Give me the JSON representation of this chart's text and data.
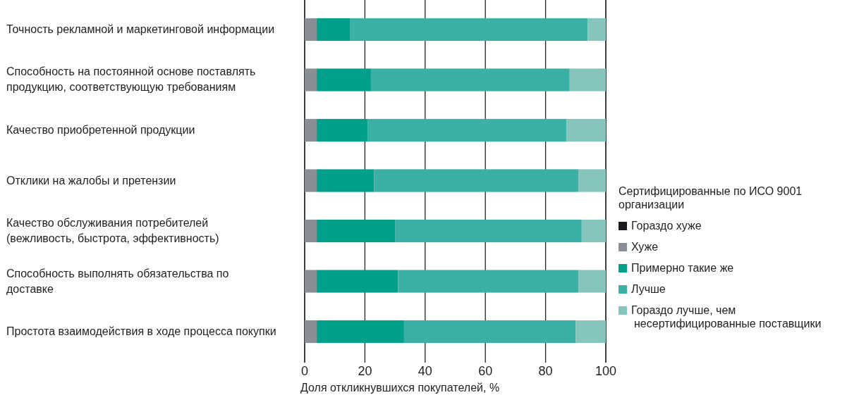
{
  "chart_data": {
    "type": "bar",
    "orientation": "horizontal",
    "stacked": true,
    "categories": [
      "Точность рекламной и маркетинговой информации",
      "Способность на постоянной основе поставлять продукцию, соответствующую требованиям",
      "Качество приобретенной продукции",
      "Отклики на жалобы и претензии",
      "Качество обслуживания потребителей (вежливость, быстрота, эффективность)",
      "Способность выполнять обязательства по доставке",
      "Простота взаимодействия в ходе процесса покупки"
    ],
    "series": [
      {
        "name": "Гораздо хуже",
        "color": "#1a1a1e",
        "values": [
          0,
          0,
          0,
          0,
          0,
          0,
          0
        ]
      },
      {
        "name": "Хуже",
        "color": "#8a8f96",
        "values": [
          4,
          4,
          4,
          4,
          4,
          4,
          4
        ]
      },
      {
        "name": "Примерно такие же",
        "color": "#00a08a",
        "values": [
          11,
          18,
          17,
          19,
          26,
          27,
          29
        ]
      },
      {
        "name": "Лучше",
        "color": "#3bb1a5",
        "values": [
          79,
          66,
          66,
          68,
          62,
          60,
          57
        ]
      },
      {
        "name": "Гораздо лучше, чем несертифицированные поставщики",
        "color": "#85c5bb",
        "values": [
          6,
          12,
          13,
          9,
          8,
          9,
          10
        ]
      }
    ],
    "xlim": [
      0,
      100
    ],
    "xticks": [
      0,
      20,
      40,
      60,
      80,
      100
    ],
    "xlabel": "Доля откликнувшихся покупателей, %",
    "legend_title": "Сертифицированные по ИСО 9001 организации",
    "legend": "right",
    "grid": "x"
  }
}
